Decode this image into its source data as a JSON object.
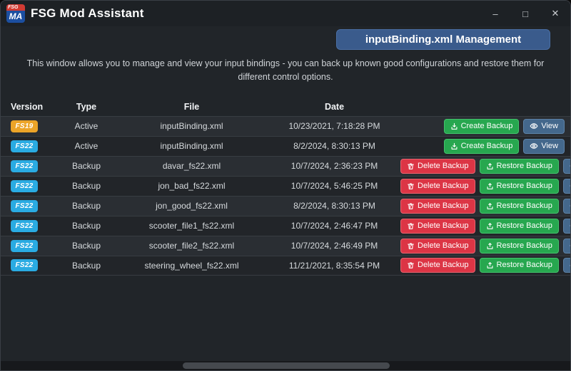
{
  "window": {
    "title": "FSG Mod Assistant",
    "logo": {
      "top": "FSG",
      "bottom": "MA"
    },
    "controls": {
      "minimize": "–",
      "maximize": "□",
      "close": "✕"
    }
  },
  "header": {
    "badge": "inputBinding.xml Management"
  },
  "description": "This window allows you to manage and view your input bindings - you can back up known good configurations and restore them for different control options.",
  "colors": {
    "fs19_badge": "#eca428",
    "fs22_badge": "#2aabe2",
    "create_button": "#27a74f",
    "delete_button": "#dc3545",
    "restore_button": "#27a74f",
    "view_button": "#44688c",
    "header_badge": "#3a5b8c"
  },
  "table": {
    "headers": {
      "version": "Version",
      "type": "Type",
      "file": "File",
      "date": "Date"
    },
    "actions": {
      "create": "Create Backup",
      "delete": "Delete Backup",
      "restore": "Restore Backup",
      "view": "View"
    },
    "rows": [
      {
        "version": "FS19",
        "badge_color": "#eca428",
        "type": "Active",
        "file": "inputBinding.xml",
        "date": "10/23/2021, 7:18:28 PM",
        "kind": "active"
      },
      {
        "version": "FS22",
        "badge_color": "#2aabe2",
        "type": "Active",
        "file": "inputBinding.xml",
        "date": "8/2/2024, 8:30:13 PM",
        "kind": "active"
      },
      {
        "version": "FS22",
        "badge_color": "#2aabe2",
        "type": "Backup",
        "file": "davar_fs22.xml",
        "date": "10/7/2024, 2:36:23 PM",
        "kind": "backup"
      },
      {
        "version": "FS22",
        "badge_color": "#2aabe2",
        "type": "Backup",
        "file": "jon_bad_fs22.xml",
        "date": "10/7/2024, 5:46:25 PM",
        "kind": "backup"
      },
      {
        "version": "FS22",
        "badge_color": "#2aabe2",
        "type": "Backup",
        "file": "jon_good_fs22.xml",
        "date": "8/2/2024, 8:30:13 PM",
        "kind": "backup"
      },
      {
        "version": "FS22",
        "badge_color": "#2aabe2",
        "type": "Backup",
        "file": "scooter_file1_fs22.xml",
        "date": "10/7/2024, 2:46:47 PM",
        "kind": "backup"
      },
      {
        "version": "FS22",
        "badge_color": "#2aabe2",
        "type": "Backup",
        "file": "scooter_file2_fs22.xml",
        "date": "10/7/2024, 2:46:49 PM",
        "kind": "backup"
      },
      {
        "version": "FS22",
        "badge_color": "#2aabe2",
        "type": "Backup",
        "file": "steering_wheel_fs22.xml",
        "date": "11/21/2021, 8:35:54 PM",
        "kind": "backup"
      }
    ]
  }
}
